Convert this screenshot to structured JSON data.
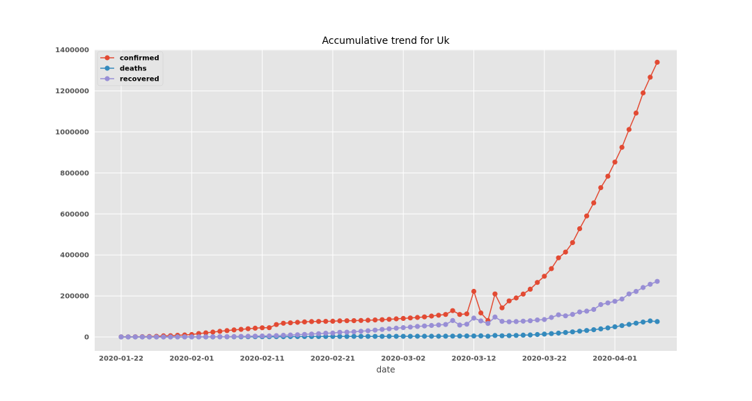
{
  "chart_data": {
    "type": "line",
    "title": "Accumulative trend for Uk",
    "xlabel": "date",
    "ylabel": "",
    "x_start": "2020-01-22",
    "x_tick_labels": [
      "2020-01-22",
      "2020-02-01",
      "2020-02-11",
      "2020-02-21",
      "2020-03-02",
      "2020-03-12",
      "2020-03-22",
      "2020-04-01"
    ],
    "y_tick_labels": [
      "0",
      "200000",
      "400000",
      "600000",
      "800000",
      "1000000",
      "1200000",
      "1400000"
    ],
    "ylim": [
      -65000,
      1460000
    ],
    "grid": true,
    "legend_position": "top-left",
    "series": [
      {
        "name": "confirmed",
        "color": "#E24A33",
        "values": [
          555,
          654,
          941,
          1434,
          2118,
          2927,
          5578,
          6166,
          8234,
          9927,
          12038,
          16787,
          19881,
          23892,
          27635,
          30817,
          34391,
          37120,
          40150,
          42762,
          44802,
          45221,
          60368,
          66885,
          69030,
          71224,
          73258,
          75136,
          75639,
          76197,
          76819,
          78572,
          78958,
          79561,
          80406,
          81388,
          82746,
          84112,
          86011,
          88369,
          90306,
          92840,
          95120,
          97886,
          101800,
          105836,
          109835,
          128343,
          109695,
          112700,
          222400,
          117000,
          80000,
          210000,
          142000,
          176000,
          190000,
          209000,
          233000,
          266000,
          296000,
          333000,
          386000,
          414000,
          460000,
          528000,
          590000,
          654000,
          728000,
          784000,
          853000,
          925000,
          1012000,
          1092000,
          1190000,
          1267000,
          1340000
        ]
      },
      {
        "name": "deaths",
        "color": "#348ABD",
        "values": [
          17,
          18,
          26,
          42,
          56,
          82,
          131,
          133,
          171,
          213,
          259,
          362,
          426,
          492,
          564,
          634,
          719,
          806,
          906,
          1013,
          1113,
          1118,
          1371,
          1523,
          1666,
          1770,
          1868,
          2007,
          2122,
          2247,
          2251,
          2458,
          2469,
          2629,
          2708,
          2770,
          2814,
          2872,
          2941,
          2996,
          3085,
          3160,
          3254,
          3348,
          3460,
          3558,
          3802,
          3988,
          4262,
          4615,
          4720,
          5404,
          3400,
          7000,
          5700,
          6500,
          7500,
          8800,
          9900,
          11800,
          13800,
          16300,
          18800,
          21700,
          24900,
          28200,
          31700,
          35300,
          39500,
          44000,
          49500,
          55200,
          61200,
          67400,
          72800,
          78000,
          75000
        ]
      },
      {
        "name": "recovered",
        "color": "#988ED5",
        "values": [
          28,
          30,
          36,
          39,
          52,
          61,
          107,
          126,
          143,
          222,
          284,
          472,
          623,
          852,
          1124,
          1487,
          2011,
          2616,
          3244,
          3946,
          4683,
          5150,
          6295,
          8058,
          9395,
          10865,
          12583,
          14352,
          16121,
          18177,
          18890,
          22886,
          23394,
          25227,
          27905,
          30384,
          33277,
          36711,
          39782,
          42716,
          45602,
          48228,
          51170,
          53796,
          55865,
          58359,
          60694,
          80000,
          58000,
          62000,
          92000,
          78000,
          66000,
          97000,
          76000,
          74000,
          75000,
          77000,
          79000,
          83000,
          85000,
          95000,
          108000,
          103000,
          110000,
          122000,
          126000,
          134000,
          158000,
          166000,
          174000,
          185000,
          210000,
          222000,
          241000,
          257000,
          271000
        ]
      }
    ]
  }
}
